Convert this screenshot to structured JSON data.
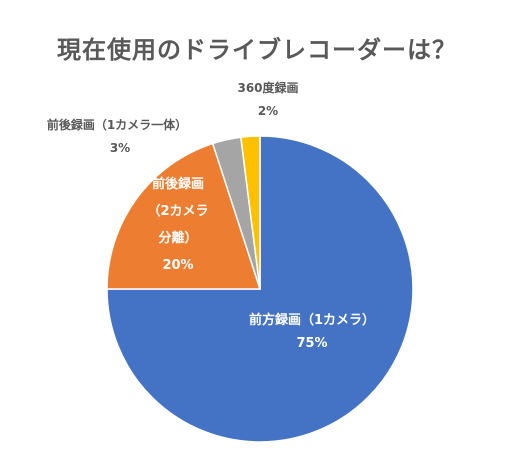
{
  "chart_data": {
    "type": "pie",
    "title": "現在使用のドライブレコーダーは？",
    "start_angle_deg": 0,
    "direction": "clockwise",
    "slices": [
      {
        "label_lines": [
          "前方録画（1カメラ）"
        ],
        "value": 75,
        "value_label": "75%",
        "color": "#4472C4",
        "label_position": "inside",
        "label_color": "#ffffff"
      },
      {
        "label_lines": [
          "前後録画",
          "（2カメラ",
          "分離）"
        ],
        "value": 20,
        "value_label": "20%",
        "color": "#ED7D31",
        "label_position": "inside",
        "label_color": "#ffffff"
      },
      {
        "label_lines": [
          "前後録画（1カメラ一体）"
        ],
        "value": 3,
        "value_label": "3%",
        "color": "#A5A5A5",
        "label_position": "outside",
        "label_color": "#595959"
      },
      {
        "label_lines": [
          "360度録画"
        ],
        "value": 2,
        "value_label": "2%",
        "color": "#FFC000",
        "label_position": "outside",
        "label_color": "#595959"
      }
    ]
  }
}
